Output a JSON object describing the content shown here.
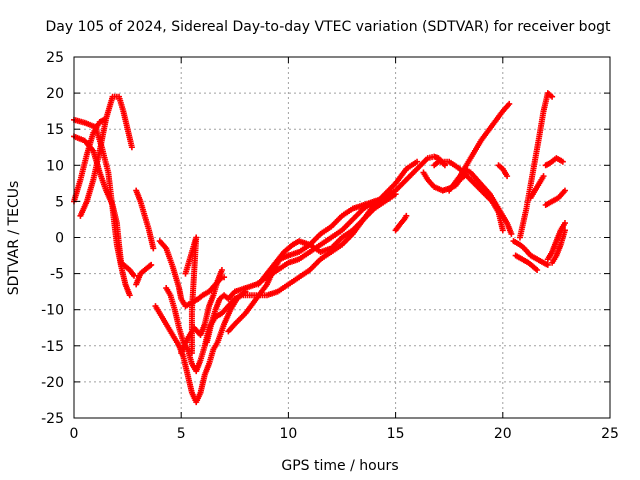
{
  "chart_data": {
    "type": "scatter",
    "title": "Day 105 of 2024, Sidereal Day-to-day VTEC variation (SDTVAR) for receiver bogt",
    "xlabel": "GPS time / hours",
    "ylabel": "SDTVAR / TECUs",
    "xlim": [
      0,
      25
    ],
    "ylim": [
      -25,
      25
    ],
    "xticks": [
      0,
      5,
      10,
      15,
      20,
      25
    ],
    "yticks": [
      -25,
      -20,
      -15,
      -10,
      -5,
      0,
      5,
      10,
      15,
      20,
      25
    ],
    "grid": true,
    "marker": "+",
    "color": "#ff0000",
    "tracks": [
      [
        [
          0.0,
          16.3
        ],
        [
          0.5,
          15.9
        ],
        [
          1.0,
          15.3
        ],
        [
          1.3,
          12.5
        ],
        [
          1.6,
          9.0
        ],
        [
          1.8,
          4.0
        ],
        [
          2.0,
          -1.0
        ],
        [
          2.2,
          -4.0
        ],
        [
          2.4,
          -6.5
        ],
        [
          2.6,
          -8.0
        ]
      ],
      [
        [
          0.0,
          14.0
        ],
        [
          0.5,
          13.4
        ],
        [
          0.9,
          12.0
        ],
        [
          1.2,
          9.0
        ],
        [
          1.5,
          6.5
        ],
        [
          1.8,
          4.5
        ],
        [
          2.0,
          2.0
        ],
        [
          2.1,
          -1.0
        ],
        [
          2.2,
          -3.5
        ],
        [
          2.4,
          -4.0
        ],
        [
          2.6,
          -4.5
        ],
        [
          2.8,
          -5.3
        ]
      ],
      [
        [
          0.0,
          5.0
        ],
        [
          0.3,
          8.0
        ],
        [
          0.6,
          11.5
        ],
        [
          0.9,
          14.5
        ],
        [
          1.2,
          16.0
        ],
        [
          1.4,
          16.3
        ]
      ],
      [
        [
          0.3,
          3.0
        ],
        [
          0.6,
          5.0
        ],
        [
          0.9,
          8.0
        ],
        [
          1.2,
          12.0
        ],
        [
          1.5,
          16.5
        ],
        [
          1.8,
          19.5
        ],
        [
          2.1,
          19.5
        ],
        [
          2.3,
          17.5
        ],
        [
          2.5,
          15.0
        ],
        [
          2.7,
          12.5
        ]
      ],
      [
        [
          2.9,
          6.5
        ],
        [
          3.1,
          5.0
        ],
        [
          3.3,
          3.0
        ],
        [
          3.5,
          1.0
        ],
        [
          3.7,
          -1.5
        ]
      ],
      [
        [
          2.9,
          -6.5
        ],
        [
          3.1,
          -5.0
        ],
        [
          3.3,
          -4.5
        ],
        [
          3.5,
          -4.0
        ],
        [
          3.6,
          -3.8
        ]
      ],
      [
        [
          3.8,
          -9.5
        ],
        [
          4.0,
          -10.5
        ],
        [
          4.3,
          -12.0
        ],
        [
          4.6,
          -13.5
        ],
        [
          4.9,
          -15.0
        ],
        [
          5.1,
          -16.5
        ],
        [
          5.3,
          -19.0
        ],
        [
          5.5,
          -21.5
        ],
        [
          5.7,
          -22.8
        ],
        [
          5.9,
          -21.5
        ],
        [
          6.1,
          -19.0
        ],
        [
          6.3,
          -17.5
        ],
        [
          6.5,
          -15.5
        ],
        [
          6.7,
          -14.5
        ],
        [
          7.0,
          -12.0
        ],
        [
          7.3,
          -10.0
        ],
        [
          7.6,
          -8.5
        ],
        [
          8.0,
          -7.5
        ]
      ],
      [
        [
          4.0,
          -0.5
        ],
        [
          4.3,
          -1.5
        ],
        [
          4.6,
          -4.0
        ],
        [
          4.9,
          -7.0
        ],
        [
          5.0,
          -8.5
        ],
        [
          5.2,
          -9.5
        ],
        [
          5.5,
          -9.0
        ],
        [
          5.8,
          -8.5
        ],
        [
          6.0,
          -8.0
        ],
        [
          6.3,
          -7.5
        ],
        [
          6.6,
          -6.5
        ],
        [
          6.9,
          -5.5
        ],
        [
          7.0,
          -5.5
        ]
      ],
      [
        [
          4.3,
          -7.0
        ],
        [
          4.5,
          -8.0
        ],
        [
          4.7,
          -10.0
        ],
        [
          4.9,
          -12.5
        ],
        [
          5.1,
          -14.5
        ],
        [
          5.3,
          -15.5
        ],
        [
          5.5,
          -17.5
        ],
        [
          5.7,
          -18.5
        ],
        [
          5.9,
          -17.0
        ],
        [
          6.1,
          -15.0
        ],
        [
          6.3,
          -12.5
        ],
        [
          6.6,
          -11.0
        ],
        [
          6.9,
          -10.5
        ],
        [
          7.2,
          -9.5
        ],
        [
          7.5,
          -8.5
        ],
        [
          7.8,
          -8.0
        ],
        [
          8.2,
          -8.0
        ],
        [
          8.6,
          -8.0
        ],
        [
          9.0,
          -8.0
        ],
        [
          9.5,
          -7.5
        ],
        [
          10.0,
          -6.5
        ],
        [
          10.5,
          -5.5
        ],
        [
          11.0,
          -4.5
        ],
        [
          11.5,
          -3.0
        ],
        [
          12.0,
          -2.0
        ],
        [
          12.5,
          -1.0
        ],
        [
          13.0,
          0.5
        ],
        [
          13.5,
          2.5
        ],
        [
          14.0,
          4.5
        ],
        [
          14.5,
          6.0
        ],
        [
          15.0,
          7.5
        ],
        [
          15.5,
          9.5
        ],
        [
          16.0,
          10.5
        ]
      ],
      [
        [
          5.0,
          -16.0
        ],
        [
          5.3,
          -14.0
        ],
        [
          5.6,
          -12.5
        ],
        [
          5.9,
          -13.5
        ],
        [
          6.1,
          -12.0
        ],
        [
          6.3,
          -9.5
        ],
        [
          6.5,
          -8.0
        ],
        [
          6.7,
          -6.0
        ],
        [
          6.9,
          -4.5
        ]
      ],
      [
        [
          5.2,
          -5.0
        ],
        [
          5.4,
          -3.0
        ],
        [
          5.6,
          -1.0
        ],
        [
          5.7,
          0.0
        ],
        [
          5.6,
          -5.0
        ],
        [
          5.5,
          -10.0
        ],
        [
          5.5,
          -16.0
        ]
      ],
      [
        [
          6.2,
          -14.5
        ],
        [
          6.4,
          -12.0
        ],
        [
          6.6,
          -10.0
        ],
        [
          6.8,
          -8.5
        ],
        [
          7.0,
          -8.0
        ],
        [
          7.2,
          -8.5
        ],
        [
          7.5,
          -7.5
        ],
        [
          8.0,
          -7.0
        ],
        [
          8.5,
          -6.5
        ],
        [
          9.0,
          -5.5
        ],
        [
          9.5,
          -4.5
        ],
        [
          10.0,
          -3.5
        ],
        [
          10.5,
          -3.0
        ],
        [
          11.0,
          -2.0
        ],
        [
          11.5,
          -1.0
        ],
        [
          12.0,
          0.0
        ],
        [
          12.5,
          1.0
        ],
        [
          13.0,
          2.5
        ],
        [
          13.5,
          4.0
        ],
        [
          14.0,
          5.0
        ],
        [
          14.5,
          5.5
        ],
        [
          15.0,
          6.5
        ],
        [
          15.5,
          8.0
        ],
        [
          16.0,
          9.5
        ],
        [
          16.5,
          11.0
        ],
        [
          16.8,
          11.2
        ],
        [
          17.0,
          11.0
        ],
        [
          17.3,
          10.0
        ]
      ],
      [
        [
          7.2,
          -13.0
        ],
        [
          7.5,
          -12.0
        ],
        [
          8.0,
          -10.5
        ],
        [
          8.5,
          -8.5
        ],
        [
          9.0,
          -6.5
        ],
        [
          9.3,
          -4.5
        ],
        [
          9.6,
          -3.0
        ],
        [
          10.0,
          -2.5
        ],
        [
          10.5,
          -2.0
        ],
        [
          11.0,
          -1.0
        ],
        [
          11.5,
          0.5
        ],
        [
          12.0,
          1.5
        ],
        [
          12.5,
          3.0
        ],
        [
          13.0,
          4.0
        ],
        [
          13.5,
          4.5
        ],
        [
          14.0,
          5.0
        ],
        [
          14.3,
          5.0
        ]
      ],
      [
        [
          8.6,
          -6.5
        ],
        [
          9.0,
          -5.0
        ],
        [
          9.4,
          -3.5
        ],
        [
          9.8,
          -2.0
        ],
        [
          10.2,
          -1.0
        ],
        [
          10.5,
          -0.5
        ],
        [
          11.0,
          -1.0
        ],
        [
          11.5,
          -2.0
        ],
        [
          12.0,
          -1.5
        ],
        [
          12.5,
          0.0
        ],
        [
          13.0,
          1.0
        ],
        [
          13.5,
          2.5
        ],
        [
          14.0,
          4.0
        ],
        [
          14.5,
          5.0
        ],
        [
          15.0,
          6.0
        ]
      ],
      [
        [
          15.0,
          1.0
        ],
        [
          15.2,
          1.8
        ],
        [
          15.4,
          2.5
        ],
        [
          15.5,
          3.0
        ]
      ],
      [
        [
          16.3,
          9.0
        ],
        [
          16.5,
          8.0
        ],
        [
          16.8,
          7.0
        ],
        [
          17.2,
          6.5
        ],
        [
          17.5,
          6.8
        ],
        [
          17.8,
          7.2
        ],
        [
          18.0,
          8.0
        ],
        [
          18.2,
          8.5
        ]
      ],
      [
        [
          16.8,
          10.0
        ],
        [
          17.0,
          10.5
        ],
        [
          17.5,
          10.5
        ],
        [
          18.0,
          9.5
        ],
        [
          18.5,
          8.0
        ],
        [
          19.0,
          6.5
        ],
        [
          19.5,
          5.0
        ],
        [
          19.8,
          3.5
        ],
        [
          20.0,
          1.0
        ]
      ],
      [
        [
          17.5,
          6.5
        ],
        [
          18.0,
          8.5
        ],
        [
          18.5,
          11.0
        ],
        [
          19.0,
          13.5
        ],
        [
          19.5,
          15.5
        ],
        [
          20.0,
          17.5
        ],
        [
          20.3,
          18.5
        ]
      ],
      [
        [
          18.2,
          9.5
        ],
        [
          18.5,
          9.0
        ],
        [
          18.8,
          8.0
        ],
        [
          19.1,
          7.0
        ],
        [
          19.4,
          6.0
        ],
        [
          19.6,
          5.0
        ],
        [
          19.8,
          4.0
        ],
        [
          20.0,
          3.0
        ],
        [
          20.2,
          2.0
        ],
        [
          20.4,
          0.5
        ]
      ],
      [
        [
          19.8,
          10.0
        ],
        [
          20.0,
          9.5
        ],
        [
          20.2,
          8.5
        ]
      ],
      [
        [
          20.5,
          -0.5
        ],
        [
          20.8,
          -1.0
        ],
        [
          21.0,
          -1.5
        ],
        [
          21.3,
          -2.5
        ],
        [
          21.6,
          -3.0
        ],
        [
          21.9,
          -3.5
        ],
        [
          22.1,
          -3.8
        ]
      ],
      [
        [
          20.6,
          -2.5
        ],
        [
          20.9,
          -3.0
        ],
        [
          21.2,
          -3.5
        ],
        [
          21.4,
          -4.0
        ],
        [
          21.6,
          -4.5
        ]
      ],
      [
        [
          20.8,
          0.0
        ],
        [
          21.1,
          4.0
        ],
        [
          21.4,
          9.0
        ],
        [
          21.7,
          14.0
        ],
        [
          21.9,
          17.5
        ],
        [
          22.1,
          20.0
        ],
        [
          22.3,
          19.5
        ]
      ],
      [
        [
          21.3,
          5.5
        ],
        [
          21.5,
          6.5
        ],
        [
          21.7,
          7.5
        ],
        [
          21.9,
          8.5
        ]
      ],
      [
        [
          22.0,
          10.0
        ],
        [
          22.2,
          10.3
        ],
        [
          22.5,
          11.0
        ],
        [
          22.8,
          10.5
        ]
      ],
      [
        [
          22.1,
          -3.0
        ],
        [
          22.3,
          -2.0
        ],
        [
          22.5,
          -0.5
        ],
        [
          22.7,
          1.0
        ],
        [
          22.9,
          2.0
        ]
      ],
      [
        [
          22.0,
          4.5
        ],
        [
          22.3,
          5.0
        ],
        [
          22.6,
          5.5
        ],
        [
          22.9,
          6.5
        ]
      ],
      [
        [
          22.3,
          -3.5
        ],
        [
          22.5,
          -2.5
        ],
        [
          22.7,
          -1.0
        ],
        [
          22.9,
          1.0
        ]
      ]
    ]
  }
}
